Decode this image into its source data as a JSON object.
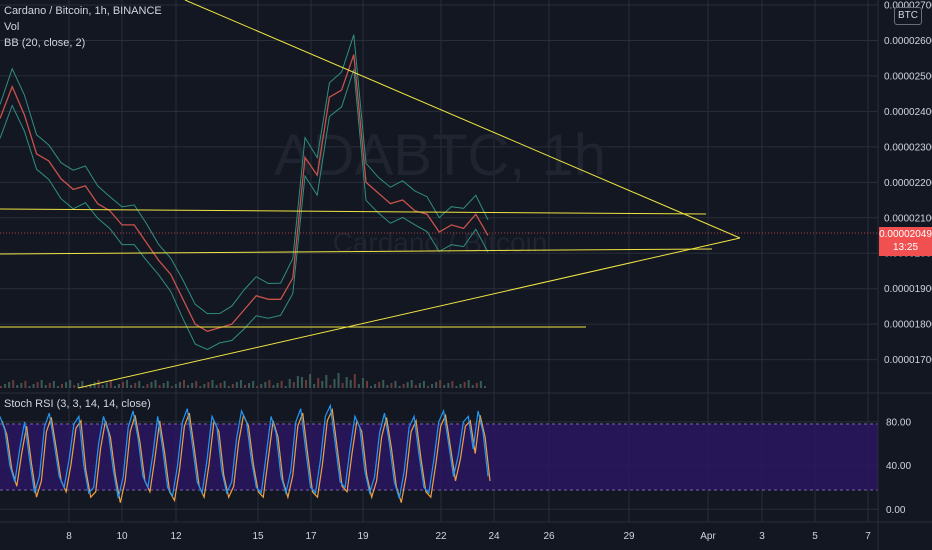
{
  "header": {
    "symbol_line": "Cardano / Bitcoin, 1h, BINANCE",
    "vol_label": "Vol",
    "bb_label": "BB (20, close, 2)",
    "stoch_label": "Stoch RSI (3, 3, 14, 14, close)"
  },
  "watermark": {
    "symbol": "ADABTC, 1h",
    "name": "Cardano / Bitcoin"
  },
  "currency_badge": "BTC",
  "price_badge": {
    "price": "0.00002049",
    "countdown": "13:25"
  },
  "colors": {
    "background": "#131722",
    "grid": "#2a2e39",
    "price_line": "#c7524b",
    "bollinger": "#2f8f80",
    "trendline": "#f0e442",
    "stoch_k": "#2196f3",
    "stoch_d": "#f0a040",
    "stoch_band": "#2a1660",
    "price_badge": "#f05050"
  },
  "chart_data": [
    {
      "type": "line",
      "title": "Cardano / Bitcoin, 1h, BINANCE",
      "x_ticks": [
        "8",
        "10",
        "12",
        "15",
        "17",
        "19",
        "22",
        "24",
        "26",
        "29",
        "Apr",
        "3",
        "5",
        "7"
      ],
      "y_ticks": [
        "0.00002700",
        "0.00002600",
        "0.00002500",
        "0.00002400",
        "0.00002300",
        "0.00002200",
        "0.00002100",
        "0.00002000",
        "0.00001900",
        "0.00001800",
        "0.00001700"
      ],
      "ylim": [
        1.62e-05,
        2.7e-05
      ],
      "last_price": 2.049e-05,
      "series": [
        {
          "values": [
            2.38e-05,
            2.47e-05,
            2.39e-05,
            2.28e-05,
            2.26e-05,
            2.21e-05,
            2.18e-05,
            2.19e-05,
            2.14e-05,
            2.12e-05,
            2.08e-05,
            2.08e-05,
            2.03e-05,
            1.98e-05,
            1.94e-05,
            1.87e-05,
            1.8e-05,
            1.78e-05,
            1.79e-05,
            1.8e-05,
            1.84e-05,
            1.88e-05,
            1.87e-05,
            1.87e-05,
            1.93e-05,
            2.27e-05,
            2.22e-05,
            2.44e-05,
            2.46e-05,
            2.56e-05,
            2.2e-05,
            2.17e-05,
            2.14e-05,
            2.15e-05,
            2.12e-05,
            2.11e-05,
            2.06e-05,
            2.08e-05,
            2.07e-05,
            2.11e-05,
            2.05e-05
          ]
        }
      ],
      "grid": true
    },
    {
      "type": "line",
      "title": "Stoch RSI (3, 3, 14, 14, close)",
      "y_ticks": [
        "80.00",
        "40.00",
        "0.00"
      ],
      "ylim": [
        -8,
        100
      ],
      "upper_band": 80,
      "lower_band": 20,
      "series": [
        {
          "values": [
            85,
            72,
            40,
            25,
            55,
            80,
            45,
            15,
            30,
            75,
            88,
            60,
            30,
            20,
            45,
            78,
            85,
            40,
            15,
            20,
            60,
            85,
            70,
            35,
            10,
            30,
            75,
            90,
            65,
            30,
            20,
            50,
            85,
            55,
            20,
            12,
            40,
            80,
            92,
            60,
            25,
            15,
            45,
            85,
            75,
            35,
            15,
            25,
            65,
            90,
            80,
            45,
            20,
            15,
            50,
            85,
            70,
            30,
            15,
            35,
            80,
            92,
            55,
            20,
            15,
            45,
            85,
            95,
            60,
            25,
            20,
            55,
            85,
            75,
            35,
            15,
            30,
            70,
            88,
            60,
            25,
            10,
            35,
            75,
            85,
            50,
            20,
            15,
            45,
            80,
            90,
            60,
            30,
            50,
            80,
            85,
            55,
            90,
            70,
            30
          ]
        }
      ],
      "grid": true
    }
  ]
}
